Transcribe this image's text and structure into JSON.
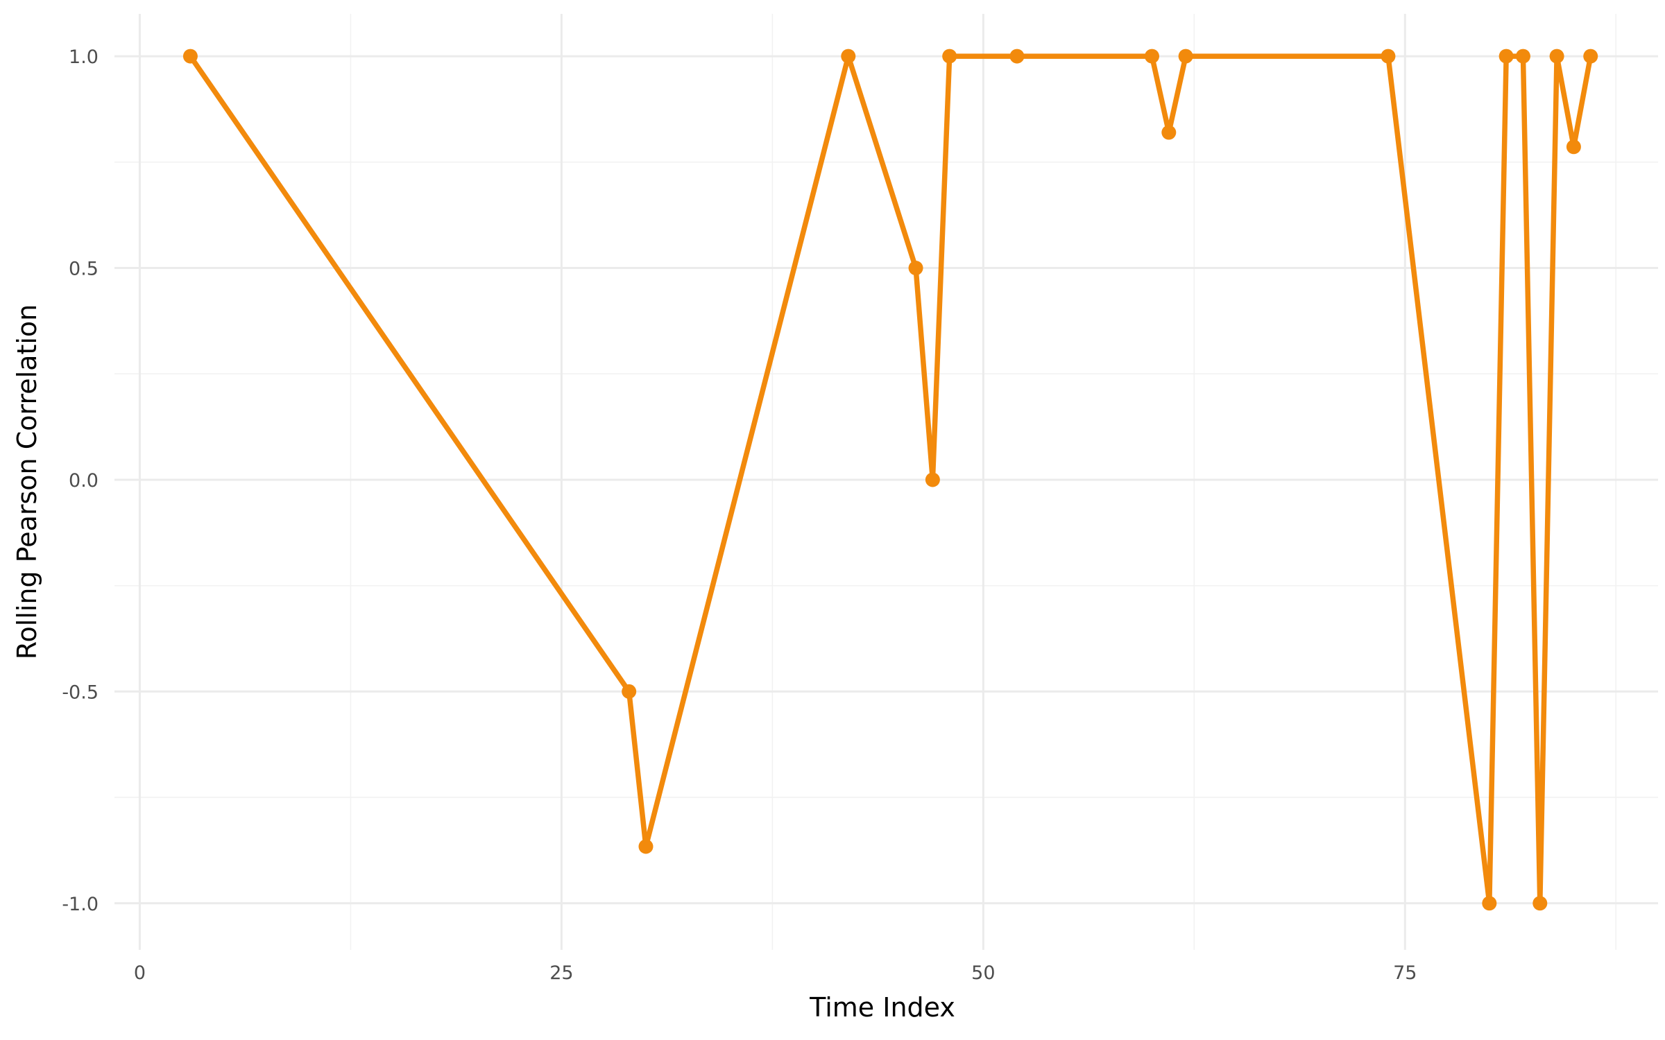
{
  "chart_data": {
    "type": "line",
    "title": "",
    "xlabel": "Time Index",
    "ylabel": "Rolling Pearson Correlation",
    "xlim": [
      -1.5,
      90.0
    ],
    "ylim": [
      -1.11,
      1.1
    ],
    "x_ticks": [
      0,
      25,
      50,
      75
    ],
    "x_minor_ticks": [
      12.5,
      37.5,
      62.5,
      87.5
    ],
    "y_ticks": [
      -1.0,
      -0.5,
      0.0,
      0.5,
      1.0
    ],
    "y_minor_ticks": [
      -0.75,
      -0.25,
      0.25,
      0.75
    ],
    "x_tick_labels": [
      "0",
      "25",
      "50",
      "75"
    ],
    "y_tick_labels": [
      "-1.0",
      "-0.5",
      "0.0",
      "0.5",
      "1.0"
    ],
    "grid": true,
    "legend": "none",
    "colors": {
      "series": "#F28A0C",
      "grid": "#EBEBEB",
      "tick_text": "#4D4D4D"
    },
    "series": [
      {
        "x": [
          3,
          29,
          30,
          42,
          46,
          47,
          48,
          52,
          60,
          61,
          62,
          74,
          80,
          81,
          82,
          83,
          84,
          85,
          86
        ],
        "y": [
          1.0,
          -0.5,
          -0.866,
          1.0,
          0.5,
          0.0,
          1.0,
          1.0,
          1.0,
          0.82,
          1.0,
          1.0,
          -1.0,
          1.0,
          1.0,
          -1.0,
          1.0,
          0.786,
          1.0
        ]
      }
    ]
  }
}
